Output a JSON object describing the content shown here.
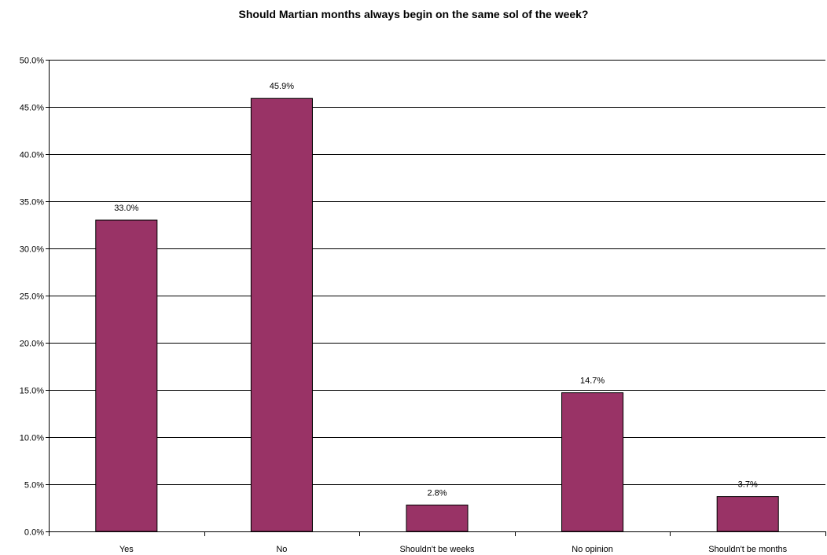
{
  "chart_data": {
    "type": "bar",
    "title": "Should Martian months always begin on the same sol of the week?",
    "xlabel": "",
    "ylabel": "",
    "categories": [
      "Yes",
      "No",
      "Shouldn't be weeks",
      "No opinion",
      "Shouldn't be months"
    ],
    "values": [
      33.0,
      45.9,
      2.8,
      14.7,
      3.7
    ],
    "value_labels": [
      "33.0%",
      "45.9%",
      "2.8%",
      "14.7%",
      "3.7%"
    ],
    "ylim": [
      0,
      50
    ],
    "yticks": [
      0,
      5,
      10,
      15,
      20,
      25,
      30,
      35,
      40,
      45,
      50
    ],
    "ytick_labels": [
      "0.0%",
      "5.0%",
      "10.0%",
      "15.0%",
      "20.0%",
      "25.0%",
      "30.0%",
      "35.0%",
      "40.0%",
      "45.0%",
      "50.0%"
    ],
    "grid": true,
    "legend": "none",
    "bar_color": "#993366"
  }
}
